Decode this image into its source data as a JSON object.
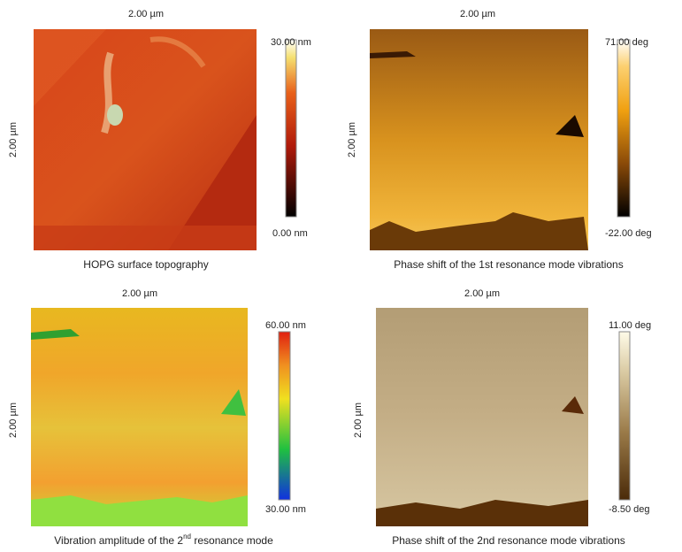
{
  "panels": [
    {
      "top_label": "2.00 µm",
      "side_label": "2.00 µm",
      "scale_max": "30.00 nm",
      "scale_min": "0.00 nm",
      "caption": [
        "HOPG surface topography"
      ]
    },
    {
      "top_label": "2.00 µm",
      "side_label": "2.00 µm",
      "scale_max": "71.00 deg",
      "scale_min": "-22.00 deg",
      "caption": [
        "Phase shift of the 1st resonance mode vibrations"
      ]
    },
    {
      "top_label": "2.00 µm",
      "side_label": "2.00 µm",
      "scale_max": "60.00 nm",
      "scale_min": "30.00 nm",
      "caption": [
        "Vibration amplitude of the 2",
        "nd",
        " resonance mode"
      ]
    },
    {
      "top_label": "2.00 µm",
      "side_label": "2.00 µm",
      "scale_max": "11.00 deg",
      "scale_min": "-8.50 deg",
      "caption": [
        "Phase shift of the 2nd resonance mode vibrations"
      ]
    }
  ]
}
